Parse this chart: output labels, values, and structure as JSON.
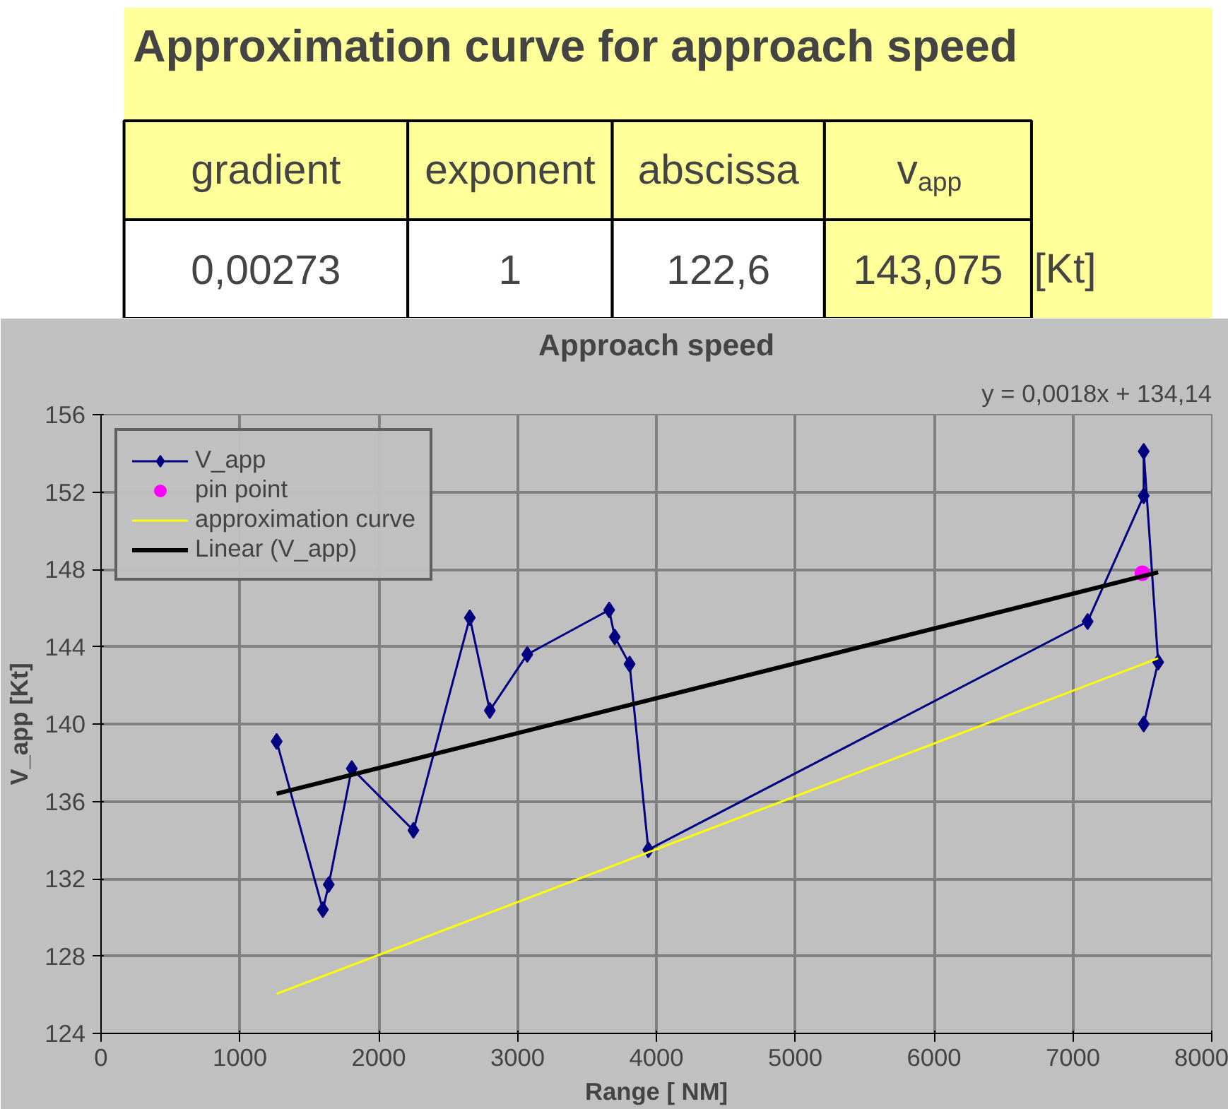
{
  "chart_data": [
    {
      "type": "other",
      "title": "Approximation curve for approach speed",
      "annotations": [
        "gradient",
        "exponent",
        "abscissa",
        "v$_{app}$",
        "0,00273",
        "1",
        "122,6",
        "143,075",
        "[Kt]"
      ]
    },
    {
      "type": "line",
      "title": "Approach speed",
      "xlabel": "Range [ NM]",
      "ylabel": "V_app [Kt]",
      "xlim": [
        0,
        8000
      ],
      "xticks": [
        0,
        1000,
        2000,
        3000,
        4000,
        5000,
        6000,
        7000,
        8000
      ],
      "ylim": [
        124,
        156
      ],
      "yticks": [
        124,
        128,
        132,
        136,
        140,
        144,
        148,
        152,
        156
      ],
      "grid": true,
      "legend": "top left",
      "annotations": [
        "y = 0,0018x + 134,14"
      ],
      "series": [
        {
          "name": "V_app",
          "type": "line",
          "marker": "diamond",
          "color": "#000080",
          "x": [
            1265,
            1598,
            1640,
            1806,
            2250,
            2656,
            2800,
            3070,
            3660,
            3700,
            3807,
            3942,
            7106,
            7510,
            7510,
            7614,
            7510
          ],
          "values": [
            139.1,
            130.4,
            131.7,
            137.7,
            134.5,
            145.5,
            140.7,
            143.6,
            145.9,
            144.5,
            143.1,
            133.5,
            145.3,
            151.8,
            154.1,
            143.2,
            140.0
          ]
        },
        {
          "name": "pin point",
          "type": "scatter",
          "marker": "circle",
          "color": "#ff00ff",
          "x": [
            7500
          ],
          "values": [
            147.8
          ]
        },
        {
          "name": "approximation curve",
          "type": "line",
          "marker": "none",
          "color": "#ffff00",
          "x": [
            1265,
            7614
          ],
          "values": [
            126.05,
            143.4
          ]
        },
        {
          "name": "Linear (V_app)",
          "type": "line",
          "marker": "none",
          "color": "#000000",
          "x": [
            1265,
            7614
          ],
          "values": [
            136.4,
            147.85
          ]
        }
      ]
    }
  ]
}
